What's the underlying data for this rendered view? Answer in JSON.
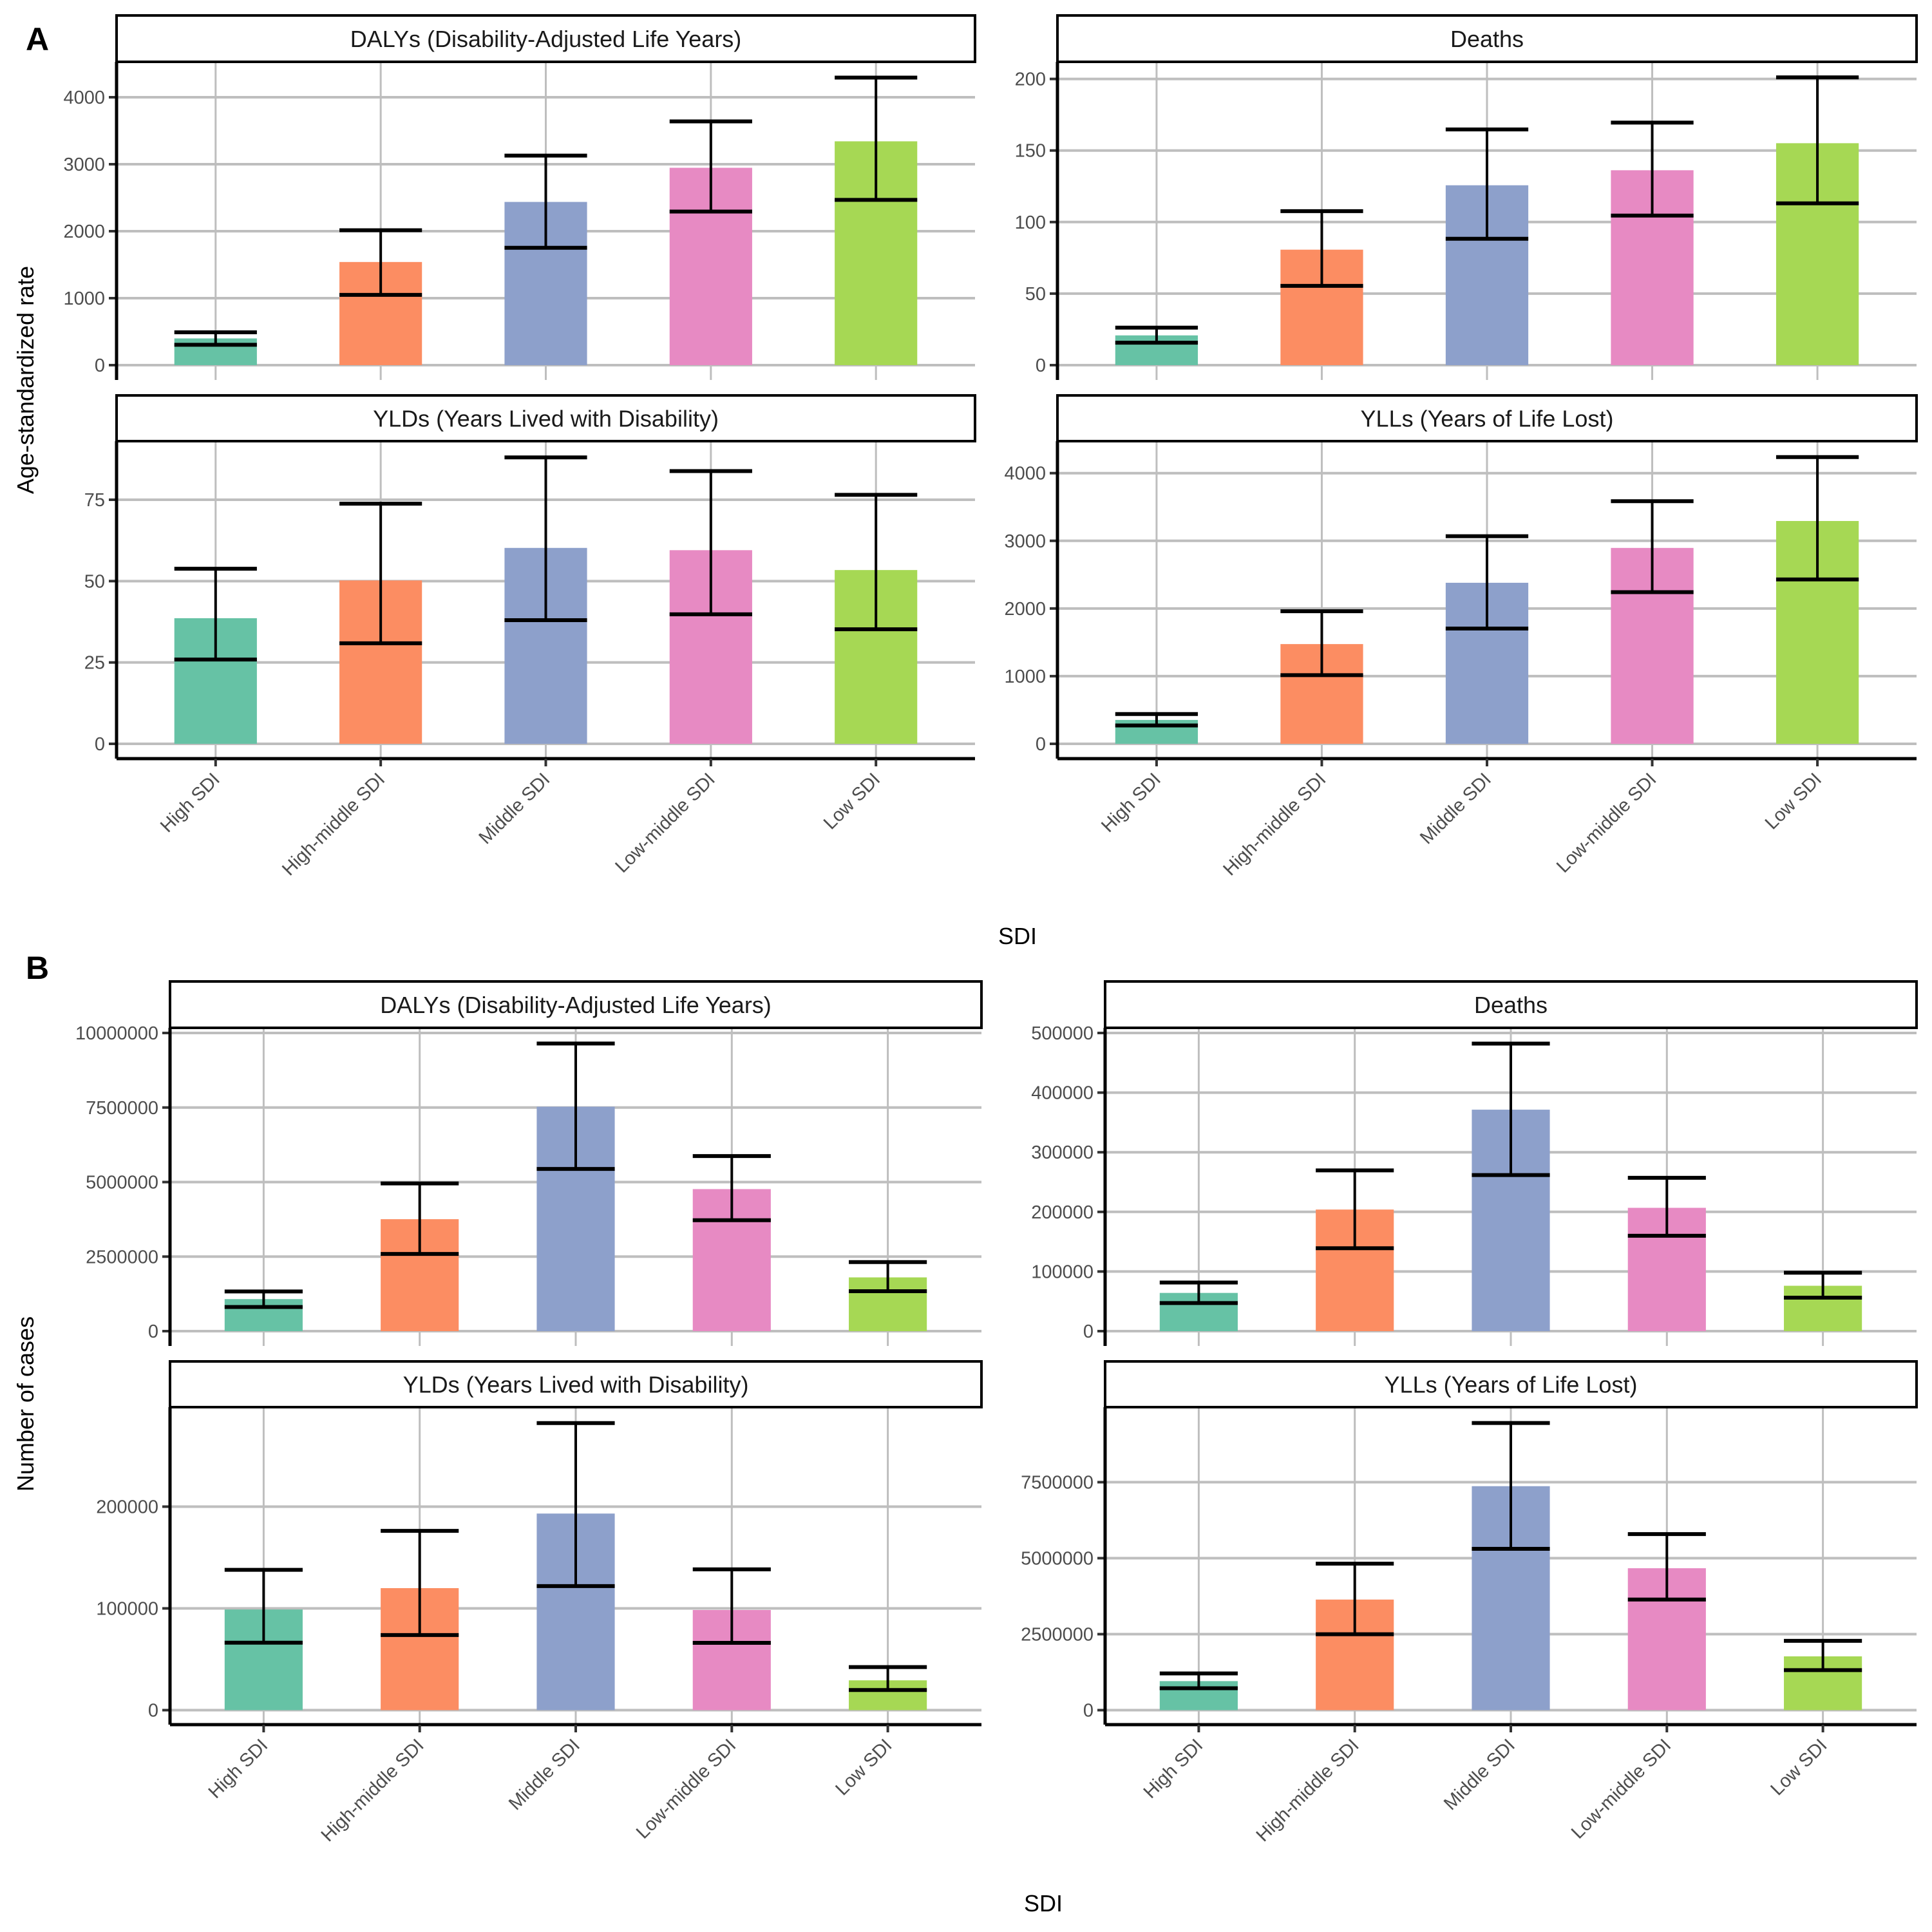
{
  "figure": {
    "panel_letters": [
      "A",
      "B"
    ],
    "x_axis_title": "SDI",
    "categories": [
      "High SDI",
      "High-middle SDI",
      "Middle SDI",
      "Low-middle SDI",
      "Low SDI"
    ],
    "colors": [
      "#66c2a5",
      "#fc8d62",
      "#8da0cb",
      "#e78ac3",
      "#a6d854"
    ]
  },
  "chart_data": [
    {
      "panel": "A",
      "type": "bar",
      "ylabel": "Age-standardized rate",
      "xlabel": "SDI",
      "facets": [
        {
          "title": "DALYs (Disability-Adjusted Life Years)",
          "ylim": [
            0,
            4300
          ],
          "yticks": [
            0,
            1000,
            2000,
            3000,
            4000
          ],
          "ytick_labels": [
            "0",
            "1000",
            "2000",
            "3000",
            "4000"
          ],
          "values": [
            399,
            1540,
            2437,
            2947,
            3342
          ],
          "lower": [
            304,
            1049,
            1753,
            2293,
            2468
          ],
          "upper": [
            490,
            2015,
            3129,
            3639,
            4293
          ]
        },
        {
          "title": "Deaths",
          "ylim": [
            0,
            201
          ],
          "yticks": [
            0,
            50,
            100,
            150,
            200
          ],
          "ytick_labels": [
            "0",
            "50",
            "100",
            "150",
            "200"
          ],
          "values": [
            20.8,
            80.7,
            125.7,
            136.2,
            155.1
          ],
          "lower": [
            15.7,
            55.4,
            88.3,
            104.5,
            113.1
          ],
          "upper": [
            26.2,
            107.6,
            164.7,
            169.5,
            201.1
          ]
        },
        {
          "title": "YLDs (Years Lived with Disability)",
          "ylim": [
            0,
            88
          ],
          "yticks": [
            0,
            25,
            50,
            75
          ],
          "ytick_labels": [
            "0",
            "25",
            "50",
            "75"
          ],
          "values": [
            38.6,
            50.2,
            60.2,
            59.5,
            53.4
          ],
          "lower": [
            25.9,
            30.9,
            38.0,
            39.8,
            35.2
          ],
          "upper": [
            53.8,
            73.8,
            88.0,
            83.8,
            76.5
          ]
        },
        {
          "title": "YLLs (Years of Life Lost)",
          "ylim": [
            0,
            4237
          ],
          "yticks": [
            0,
            1000,
            2000,
            3000,
            4000
          ],
          "ytick_labels": [
            "0",
            "1000",
            "2000",
            "3000",
            "4000"
          ],
          "values": [
            353,
            1474,
            2380,
            2895,
            3293
          ],
          "lower": [
            271,
            1015,
            1703,
            2241,
            2429
          ],
          "upper": [
            440,
            1959,
            3068,
            3586,
            4237
          ]
        }
      ]
    },
    {
      "panel": "B",
      "type": "bar",
      "ylabel": "Number of cases",
      "xlabel": "SDI",
      "facets": [
        {
          "title": "DALYs (Disability-Adjusted Life Years)",
          "ylim": [
            0,
            10000000
          ],
          "yticks": [
            0,
            2500000,
            5000000,
            7500000,
            10000000
          ],
          "ytick_labels": [
            "0",
            "2500000",
            "5000000",
            "7500000",
            "10000000"
          ],
          "values": [
            1075000,
            3755000,
            7527000,
            4764000,
            1803000
          ],
          "lower": [
            810000,
            2590000,
            5440000,
            3720000,
            1340000
          ],
          "upper": [
            1330000,
            4955000,
            9645000,
            5873000,
            2316000
          ]
        },
        {
          "title": "Deaths",
          "ylim": [
            0,
            500000
          ],
          "yticks": [
            0,
            100000,
            200000,
            300000,
            400000,
            500000
          ],
          "ytick_labels": [
            "0",
            "100000",
            "200000",
            "300000",
            "400000",
            "500000"
          ],
          "values": [
            64100,
            203900,
            371400,
            206800,
            76100
          ],
          "lower": [
            47100,
            139000,
            261800,
            160000,
            56200
          ],
          "upper": [
            81500,
            269600,
            482200,
            257200,
            98000
          ]
        },
        {
          "title": "YLDs (Years Lived with Disability)",
          "ylim": [
            0,
            282100
          ],
          "yticks": [
            0,
            100000,
            200000
          ],
          "ytick_labels": [
            "0",
            "100000",
            "200000"
          ],
          "values": [
            98900,
            119900,
            193200,
            98400,
            29300
          ],
          "lower": [
            66300,
            73800,
            121900,
            66100,
            19800
          ],
          "upper": [
            137900,
            176200,
            282100,
            138400,
            42300
          ]
        },
        {
          "title": "YLLs (Years of Life Lost)",
          "ylim": [
            0,
            9447000
          ],
          "yticks": [
            0,
            2500000,
            5000000,
            7500000
          ],
          "ytick_labels": [
            "0",
            "2500000",
            "5000000",
            "7500000"
          ],
          "values": [
            955000,
            3638000,
            7368000,
            4669000,
            1769000
          ],
          "lower": [
            720000,
            2498000,
            5306000,
            3638000,
            1316000
          ],
          "upper": [
            1207000,
            4820000,
            9447000,
            5792000,
            2280000
          ]
        }
      ]
    }
  ]
}
